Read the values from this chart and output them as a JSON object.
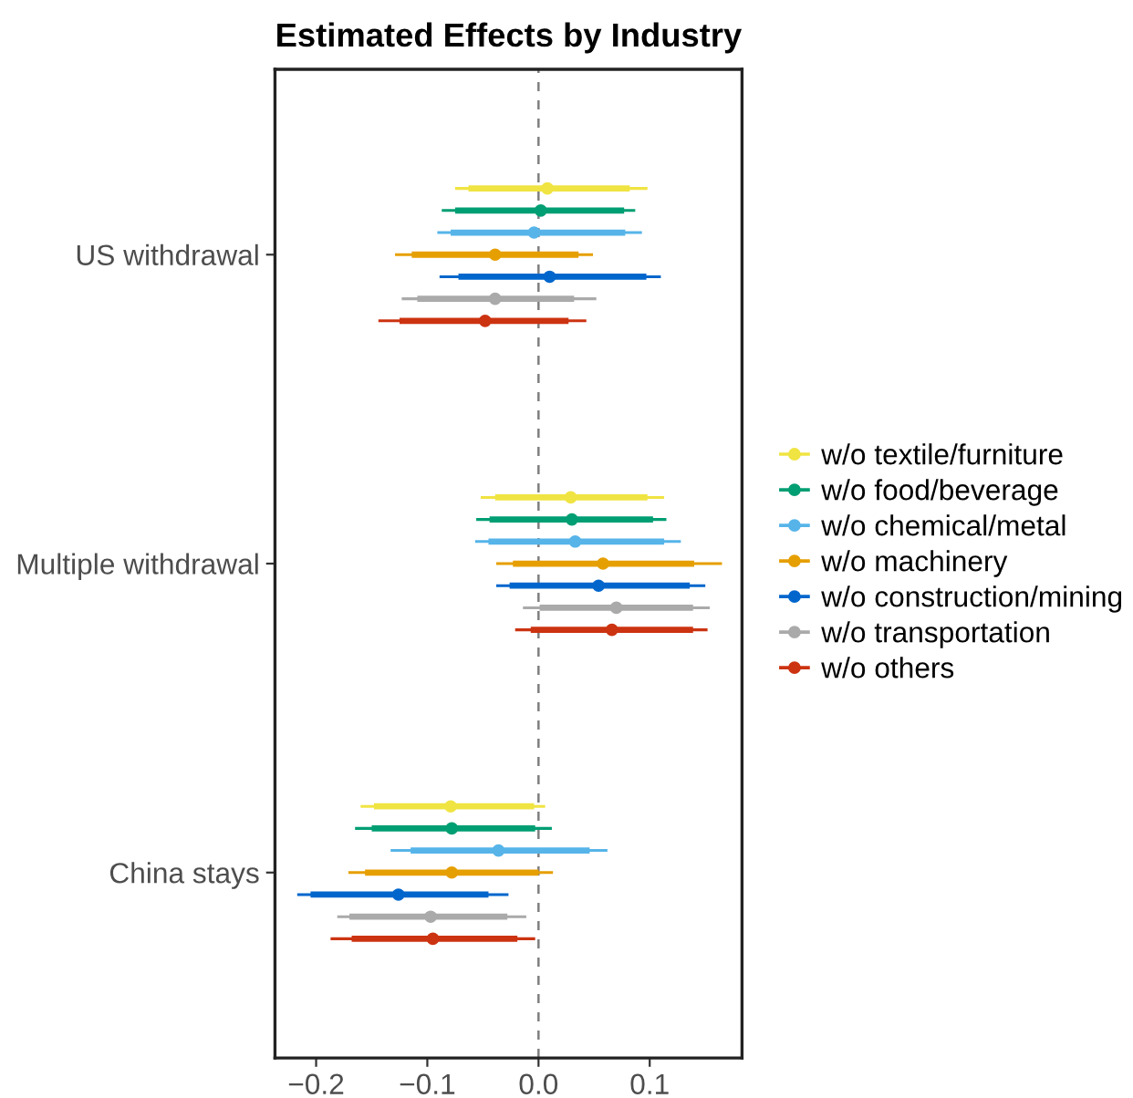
{
  "chart_data": {
    "type": "scatter",
    "orientation": "horizontal",
    "title": "Estimated Effects by Industry",
    "categories": [
      "US withdrawal",
      "Multiple withdrawal",
      "China stays"
    ],
    "xlim": [
      -0.237,
      0.183
    ],
    "xticks": [
      {
        "value": -0.2,
        "label": "−0.2"
      },
      {
        "value": -0.1,
        "label": "−0.1"
      },
      {
        "value": 0.0,
        "label": "0.0"
      },
      {
        "value": 0.1,
        "label": "0.1"
      }
    ],
    "legend": "right",
    "marker": "circle",
    "ref_lines": [
      {
        "axis": "x",
        "value": 0,
        "color": "#7f7f7f",
        "line_style": "dashed"
      }
    ],
    "series": [
      {
        "name": "w/o textile/furniture",
        "color": "#f0e442",
        "values": [
          0.008,
          0.029,
          -0.079
        ],
        "errors": [
          [
            -0.075,
            0.098
          ],
          [
            -0.052,
            0.113
          ],
          [
            -0.16,
            0.006
          ]
        ]
      },
      {
        "name": "w/o food/beverage",
        "color": "#009e73",
        "values": [
          0.002,
          0.03,
          -0.078
        ],
        "errors": [
          [
            -0.087,
            0.087
          ],
          [
            -0.056,
            0.115
          ],
          [
            -0.165,
            0.012
          ]
        ]
      },
      {
        "name": "w/o chemical/metal",
        "color": "#56b4e9",
        "values": [
          -0.004,
          0.033,
          -0.036
        ],
        "errors": [
          [
            -0.091,
            0.093
          ],
          [
            -0.057,
            0.128
          ],
          [
            -0.133,
            0.062
          ]
        ]
      },
      {
        "name": "w/o machinery",
        "color": "#e69f00",
        "values": [
          -0.039,
          0.058,
          -0.078
        ],
        "errors": [
          [
            -0.129,
            0.049
          ],
          [
            -0.038,
            0.165
          ],
          [
            -0.171,
            0.013
          ]
        ]
      },
      {
        "name": "w/o construction/mining",
        "color": "#0066cc",
        "values": [
          0.01,
          0.054,
          -0.126
        ],
        "errors": [
          [
            -0.089,
            0.11
          ],
          [
            -0.038,
            0.15
          ],
          [
            -0.217,
            -0.027
          ]
        ]
      },
      {
        "name": "w/o transportation",
        "color": "#aaaaaa",
        "values": [
          -0.039,
          0.07,
          -0.097
        ],
        "errors": [
          [
            -0.123,
            0.052
          ],
          [
            -0.014,
            0.154
          ],
          [
            -0.181,
            -0.011
          ]
        ]
      },
      {
        "name": "w/o others",
        "color": "#cc3311",
        "values": [
          -0.048,
          0.066,
          -0.095
        ],
        "errors": [
          [
            -0.144,
            0.043
          ],
          [
            -0.021,
            0.152
          ],
          [
            -0.187,
            -0.003
          ]
        ]
      },
      {
        "type": "bar",
        "color": "#f0e442",
        "base": [
          -0.063,
          -0.039,
          -0.148
        ],
        "values": [
          0.145,
          0.137,
          0.144
        ]
      },
      {
        "type": "bar",
        "color": "#009e73",
        "base": [
          -0.075,
          -0.044,
          -0.15
        ],
        "values": [
          0.152,
          0.147,
          0.147
        ]
      },
      {
        "type": "bar",
        "color": "#56b4e9",
        "base": [
          -0.079,
          -0.045,
          -0.115
        ],
        "values": [
          0.157,
          0.158,
          0.161
        ]
      },
      {
        "type": "bar",
        "color": "#e69f00",
        "base": [
          -0.114,
          -0.023,
          -0.156
        ],
        "values": [
          0.15,
          0.163,
          0.156
        ]
      },
      {
        "type": "bar",
        "color": "#0066cc",
        "base": [
          -0.072,
          -0.026,
          -0.205
        ],
        "values": [
          0.169,
          0.162,
          0.16
        ]
      },
      {
        "type": "bar",
        "color": "#aaaaaa",
        "base": [
          -0.109,
          0.001,
          -0.17
        ],
        "values": [
          0.141,
          0.138,
          0.142
        ]
      },
      {
        "type": "bar",
        "color": "#cc3311",
        "base": [
          -0.125,
          -0.007,
          -0.168
        ],
        "values": [
          0.152,
          0.146,
          0.149
        ]
      }
    ]
  }
}
